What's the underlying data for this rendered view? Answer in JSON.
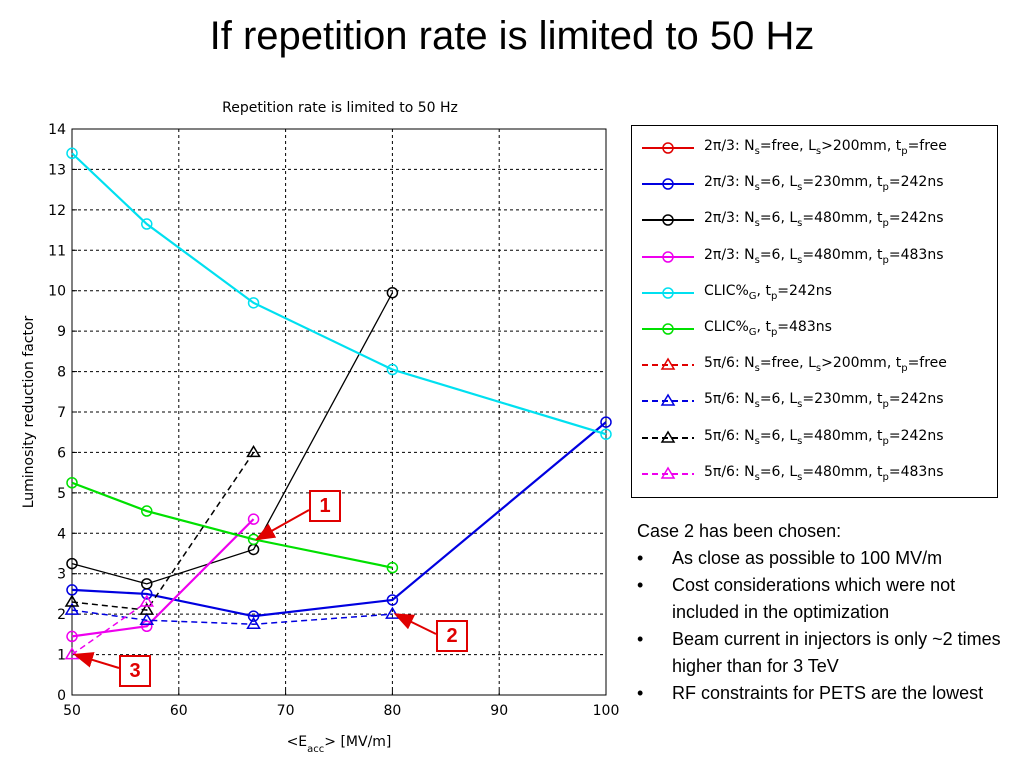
{
  "slide": {
    "title": "If repetition rate is limited to 50 Hz"
  },
  "chart_data": {
    "type": "line",
    "title": "Repetition rate is limited to 50 Hz",
    "xlabel_parts": [
      "<E",
      "acc",
      "> [MV/m]"
    ],
    "ylabel": "Luminosity reduction factor",
    "xlim": [
      50,
      100
    ],
    "ylim": [
      0,
      14
    ],
    "xticks": [
      "50",
      "60",
      "70",
      "80",
      "90",
      "100"
    ],
    "yticks": [
      "0",
      "1",
      "2",
      "3",
      "4",
      "5",
      "6",
      "7",
      "8",
      "9",
      "10",
      "11",
      "12",
      "13",
      "14"
    ],
    "grid": true,
    "legend_position": "right, outside plot",
    "series": [
      {
        "color": "#e00000",
        "dash": false,
        "marker": "circle",
        "label_parts": [
          [
            "2π/3: N",
            ""
          ],
          [
            "s",
            "sub"
          ],
          [
            "=free, L",
            ""
          ],
          [
            "s",
            "sub"
          ],
          [
            ">200mm, t",
            ""
          ],
          [
            "p",
            "sub"
          ],
          [
            "=free",
            ""
          ]
        ],
        "points": []
      },
      {
        "color": "#0000e0",
        "dash": false,
        "marker": "circle",
        "label_parts": [
          [
            "2π/3: N",
            ""
          ],
          [
            "s",
            "sub"
          ],
          [
            "=6, L",
            ""
          ],
          [
            "s",
            "sub"
          ],
          [
            "=230mm, t",
            ""
          ],
          [
            "p",
            "sub"
          ],
          [
            "=242ns",
            ""
          ]
        ],
        "points": [
          [
            50,
            2.6
          ],
          [
            57,
            2.5
          ],
          [
            67,
            1.95
          ],
          [
            80,
            2.35
          ],
          [
            100,
            6.75
          ]
        ]
      },
      {
        "color": "#000000",
        "dash": false,
        "marker": "circle",
        "label_parts": [
          [
            "2π/3: N",
            ""
          ],
          [
            "s",
            "sub"
          ],
          [
            "=6, L",
            ""
          ],
          [
            "s",
            "sub"
          ],
          [
            "=480mm, t",
            ""
          ],
          [
            "p",
            "sub"
          ],
          [
            "=242ns",
            ""
          ]
        ],
        "points": [
          [
            50,
            3.25
          ],
          [
            57,
            2.75
          ],
          [
            67,
            3.6
          ],
          [
            80,
            9.95
          ]
        ]
      },
      {
        "color": "#ee00ee",
        "dash": false,
        "marker": "circle",
        "label_parts": [
          [
            "2π/3: N",
            ""
          ],
          [
            "s",
            "sub"
          ],
          [
            "=6, L",
            ""
          ],
          [
            "s",
            "sub"
          ],
          [
            "=480mm, t",
            ""
          ],
          [
            "p",
            "sub"
          ],
          [
            "=483ns",
            ""
          ]
        ],
        "points": [
          [
            50,
            1.45
          ],
          [
            57,
            1.7
          ],
          [
            67,
            4.35
          ]
        ]
      },
      {
        "color": "#00e0f0",
        "dash": false,
        "marker": "circle",
        "label_parts": [
          [
            "CLIC%",
            ""
          ],
          [
            "G",
            "sub"
          ],
          [
            ", t",
            ""
          ],
          [
            "p",
            "sub"
          ],
          [
            "=242ns",
            ""
          ]
        ],
        "points": [
          [
            50,
            13.4
          ],
          [
            57,
            11.65
          ],
          [
            67,
            9.7
          ],
          [
            80,
            8.05
          ],
          [
            100,
            6.45
          ]
        ]
      },
      {
        "color": "#00e000",
        "dash": false,
        "marker": "circle",
        "label_parts": [
          [
            "CLIC%",
            ""
          ],
          [
            "G",
            "sub"
          ],
          [
            ", t",
            ""
          ],
          [
            "p",
            "sub"
          ],
          [
            "=483ns",
            ""
          ]
        ],
        "points": [
          [
            50,
            5.25
          ],
          [
            57,
            4.55
          ],
          [
            67,
            3.85
          ],
          [
            80,
            3.15
          ]
        ]
      },
      {
        "color": "#e00000",
        "dash": true,
        "marker": "triangle",
        "label_parts": [
          [
            "5π/6: N",
            ""
          ],
          [
            "s",
            "sub"
          ],
          [
            "=free, L",
            ""
          ],
          [
            "s",
            "sub"
          ],
          [
            ">200mm, t",
            ""
          ],
          [
            "p",
            "sub"
          ],
          [
            "=free",
            ""
          ]
        ],
        "points": []
      },
      {
        "color": "#0000e0",
        "dash": true,
        "marker": "triangle",
        "label_parts": [
          [
            "5π/6: N",
            ""
          ],
          [
            "s",
            "sub"
          ],
          [
            "=6, L",
            ""
          ],
          [
            "s",
            "sub"
          ],
          [
            "=230mm, t",
            ""
          ],
          [
            "p",
            "sub"
          ],
          [
            "=242ns",
            ""
          ]
        ],
        "points": [
          [
            50,
            2.1
          ],
          [
            57,
            1.85
          ],
          [
            67,
            1.75
          ],
          [
            80,
            2.0
          ]
        ]
      },
      {
        "color": "#000000",
        "dash": true,
        "marker": "triangle",
        "label_parts": [
          [
            "5π/6: N",
            ""
          ],
          [
            "s",
            "sub"
          ],
          [
            "=6, L",
            ""
          ],
          [
            "s",
            "sub"
          ],
          [
            "=480mm, t",
            ""
          ],
          [
            "p",
            "sub"
          ],
          [
            "=242ns",
            ""
          ]
        ],
        "points": [
          [
            50,
            2.3
          ],
          [
            57,
            2.1
          ],
          [
            67,
            6.0
          ]
        ]
      },
      {
        "color": "#ee00ee",
        "dash": true,
        "marker": "triangle",
        "label_parts": [
          [
            "5π/6: N",
            ""
          ],
          [
            "s",
            "sub"
          ],
          [
            "=6, L",
            ""
          ],
          [
            "s",
            "sub"
          ],
          [
            "=480mm, t",
            ""
          ],
          [
            "p",
            "sub"
          ],
          [
            "=483ns",
            ""
          ]
        ],
        "points": [
          [
            50,
            1.0
          ],
          [
            57,
            2.3
          ]
        ]
      }
    ],
    "annotations": [
      {
        "label": "1",
        "target": [
          67,
          3.85
        ]
      },
      {
        "label": "2",
        "target": [
          80,
          2.0
        ]
      },
      {
        "label": "3",
        "target": [
          50,
          1.0
        ]
      }
    ]
  },
  "notes": {
    "heading": "Case 2 has been chosen:",
    "bullet_symbol": "•",
    "items": [
      "As close as possible to 100 MV/m",
      "Cost considerations which were not included in the optimization",
      "Beam current in injectors is only ~2 times higher than for 3 TeV",
      "RF constraints for PETS are the lowest"
    ]
  }
}
